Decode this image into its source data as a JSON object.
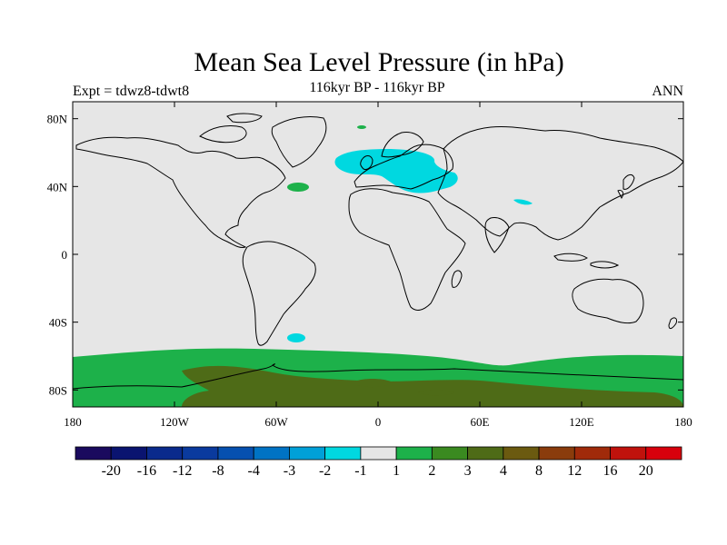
{
  "title": "Mean Sea Level Pressure (in hPa)",
  "subtitle": "116kyr BP - 116kyr BP",
  "left_label": "Expt = tdwz8-tdwt8",
  "right_label": "ANN",
  "colors": {
    "background": "#e6e6e6",
    "cyan": "#00d8e0",
    "green": "#1db14a",
    "dark_green": "#4e6b17",
    "land_outline": "#000000"
  },
  "chart_data": {
    "type": "heatmap",
    "title": "Mean Sea Level Pressure (in hPa)",
    "subtitle": "116kyr BP - 116kyr BP",
    "projection": "cylindrical equidistant",
    "xlim": [
      -180,
      180
    ],
    "ylim": [
      -90,
      90
    ],
    "x_ticks": [
      {
        "value": -180,
        "label": "180"
      },
      {
        "value": -120,
        "label": "120W"
      },
      {
        "value": -60,
        "label": "60W"
      },
      {
        "value": 0,
        "label": "0"
      },
      {
        "value": 60,
        "label": "60E"
      },
      {
        "value": 120,
        "label": "120E"
      },
      {
        "value": 180,
        "label": "180"
      }
    ],
    "y_ticks": [
      {
        "value": 80,
        "label": "80N"
      },
      {
        "value": 40,
        "label": "40N"
      },
      {
        "value": 0,
        "label": "0"
      },
      {
        "value": -40,
        "label": "40S"
      },
      {
        "value": -80,
        "label": "80S"
      }
    ],
    "colorbar": {
      "colors": [
        "#1a0a5e",
        "#0a1470",
        "#0a2a8c",
        "#0a3a9e",
        "#0650b0",
        "#0073c4",
        "#00a0d8",
        "#00d8e0",
        "#e6e6e6",
        "#1db14a",
        "#3a8a20",
        "#4e6b17",
        "#6b5a10",
        "#8a3c0c",
        "#a02a0a",
        "#c0120c",
        "#d8000c"
      ],
      "labels": [
        "-20",
        "-16",
        "-12",
        "-8",
        "-4",
        "-3",
        "-2",
        "-1",
        "1",
        "2",
        "3",
        "4",
        "8",
        "12",
        "16",
        "20"
      ]
    },
    "regions": [
      {
        "name": "southern-ocean",
        "level": "2",
        "lat_range": [
          -90,
          -60
        ],
        "lon_range": [
          -180,
          180
        ]
      },
      {
        "name": "antarctic-interior",
        "level": "3",
        "lat_range": [
          -90,
          -66
        ],
        "lon_range": [
          -120,
          160
        ]
      },
      {
        "name": "europe-anomaly",
        "level": "-1",
        "center": [
          15,
          56
        ]
      },
      {
        "name": "north-atlantic-patch",
        "level": "2",
        "center": [
          -48,
          40
        ]
      },
      {
        "name": "south-atlantic-patch",
        "level": "-1",
        "center": [
          -48,
          -48
        ]
      }
    ]
  }
}
